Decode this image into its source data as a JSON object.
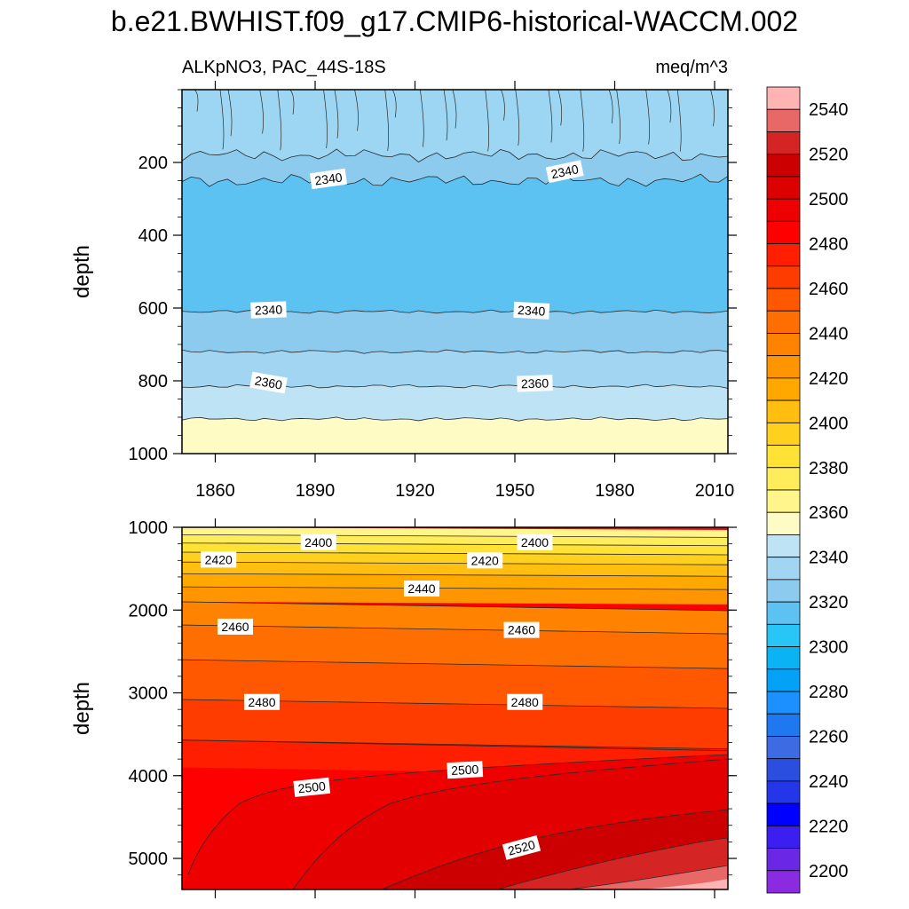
{
  "title": "b.e21.BWHIST.f09_g17.CMIP6-historical-WACCM.002",
  "chart_data": {
    "type": "contour",
    "title": "b.e21.BWHIST.f09_g17.CMIP6-historical-WACCM.002",
    "variable_label": "ALKpNO3, PAC_44S-18S",
    "units": "meq/m^3",
    "xlim": [
      1850,
      2014
    ],
    "x_ticks": [
      1860,
      1890,
      1920,
      1950,
      1980,
      2010
    ],
    "panels": [
      {
        "name": "upper",
        "ylabel": "depth",
        "ylim": [
          0,
          1000
        ],
        "y_ticks": [
          200,
          400,
          600,
          800,
          1000
        ],
        "levels": [
          {
            "value": 2340,
            "depth_top": 0,
            "depth_bottom": 180,
            "color": "#9dd6f2"
          },
          {
            "value": 2330,
            "depth_top": 180,
            "depth_bottom": 250,
            "color": "#8dcbee"
          },
          {
            "value": 2320,
            "depth_top": 250,
            "depth_bottom": 610,
            "color": "#5bc2f2"
          },
          {
            "value": 2340,
            "depth_top": 610,
            "depth_bottom": 720,
            "color": "#8dcbee"
          },
          {
            "value": 2350,
            "depth_top": 720,
            "depth_bottom": 815,
            "color": "#a2d5f2"
          },
          {
            "value": 2360,
            "depth_top": 815,
            "depth_bottom": 905,
            "color": "#bde3f4"
          },
          {
            "value": 2380,
            "depth_top": 905,
            "depth_bottom": 1000,
            "color": "#fffbc4"
          }
        ],
        "contour_labels": [
          {
            "text": "2340",
            "x": 1894,
            "depth": 245,
            "angle": -8
          },
          {
            "text": "2340",
            "x": 1965,
            "depth": 225,
            "angle": -12
          },
          {
            "text": "2340",
            "x": 1876,
            "depth": 605,
            "angle": -2
          },
          {
            "text": "2340",
            "x": 1955,
            "depth": 607,
            "angle": 3
          },
          {
            "text": "2360",
            "x": 1876,
            "depth": 805,
            "angle": 10
          },
          {
            "text": "2360",
            "x": 1956,
            "depth": 807,
            "angle": -2
          }
        ]
      },
      {
        "name": "lower",
        "ylabel": "depth",
        "ylim": [
          1000,
          5375
        ],
        "y_ticks": [
          1000,
          2000,
          3000,
          4000,
          5000
        ],
        "contour_labels": [
          {
            "text": "2400",
            "x": 1891,
            "depth": 1180,
            "angle": 0
          },
          {
            "text": "2400",
            "x": 1956,
            "depth": 1180,
            "angle": 0
          },
          {
            "text": "2420",
            "x": 1861,
            "depth": 1390,
            "angle": 0
          },
          {
            "text": "2420",
            "x": 1941,
            "depth": 1400,
            "angle": 0
          },
          {
            "text": "2440",
            "x": 1922,
            "depth": 1740,
            "angle": 0
          },
          {
            "text": "2460",
            "x": 1866,
            "depth": 2200,
            "angle": 0
          },
          {
            "text": "2460",
            "x": 1952,
            "depth": 2240,
            "angle": 0
          },
          {
            "text": "2480",
            "x": 1874,
            "depth": 3110,
            "angle": 0
          },
          {
            "text": "2480",
            "x": 1953,
            "depth": 3110,
            "angle": 0
          },
          {
            "text": "2500",
            "x": 1889,
            "depth": 4140,
            "angle": -6
          },
          {
            "text": "2500",
            "x": 1935,
            "depth": 3930,
            "angle": -3
          },
          {
            "text": "2520",
            "x": 1952,
            "depth": 4870,
            "angle": -15
          }
        ]
      }
    ],
    "colorbar": {
      "labels": [
        2200,
        2220,
        2240,
        2260,
        2280,
        2300,
        2320,
        2340,
        2360,
        2380,
        2400,
        2420,
        2440,
        2460,
        2480,
        2500,
        2520,
        2540
      ],
      "colors": [
        "#8a2be2",
        "#6a28e6",
        "#3c1ef0",
        "#0000ff",
        "#2436ea",
        "#2a4fe0",
        "#3d6be4",
        "#1e78f0",
        "#1d90ff",
        "#04a2f6",
        "#0ab4f4",
        "#27c6f6",
        "#5bc2f2",
        "#8dcbee",
        "#a2d5f2",
        "#bde3f4",
        "#fffbc4",
        "#fff58a",
        "#ffec5a",
        "#ffe234",
        "#ffd01e",
        "#ffbe10",
        "#ffa800",
        "#ff9500",
        "#ff8200",
        "#ff6e00",
        "#ff5800",
        "#ff3c00",
        "#ff1e00",
        "#ff0000",
        "#ee0000",
        "#dd0000",
        "#cc0000",
        "#d42424",
        "#e86868",
        "#ffb4b4"
      ]
    }
  }
}
